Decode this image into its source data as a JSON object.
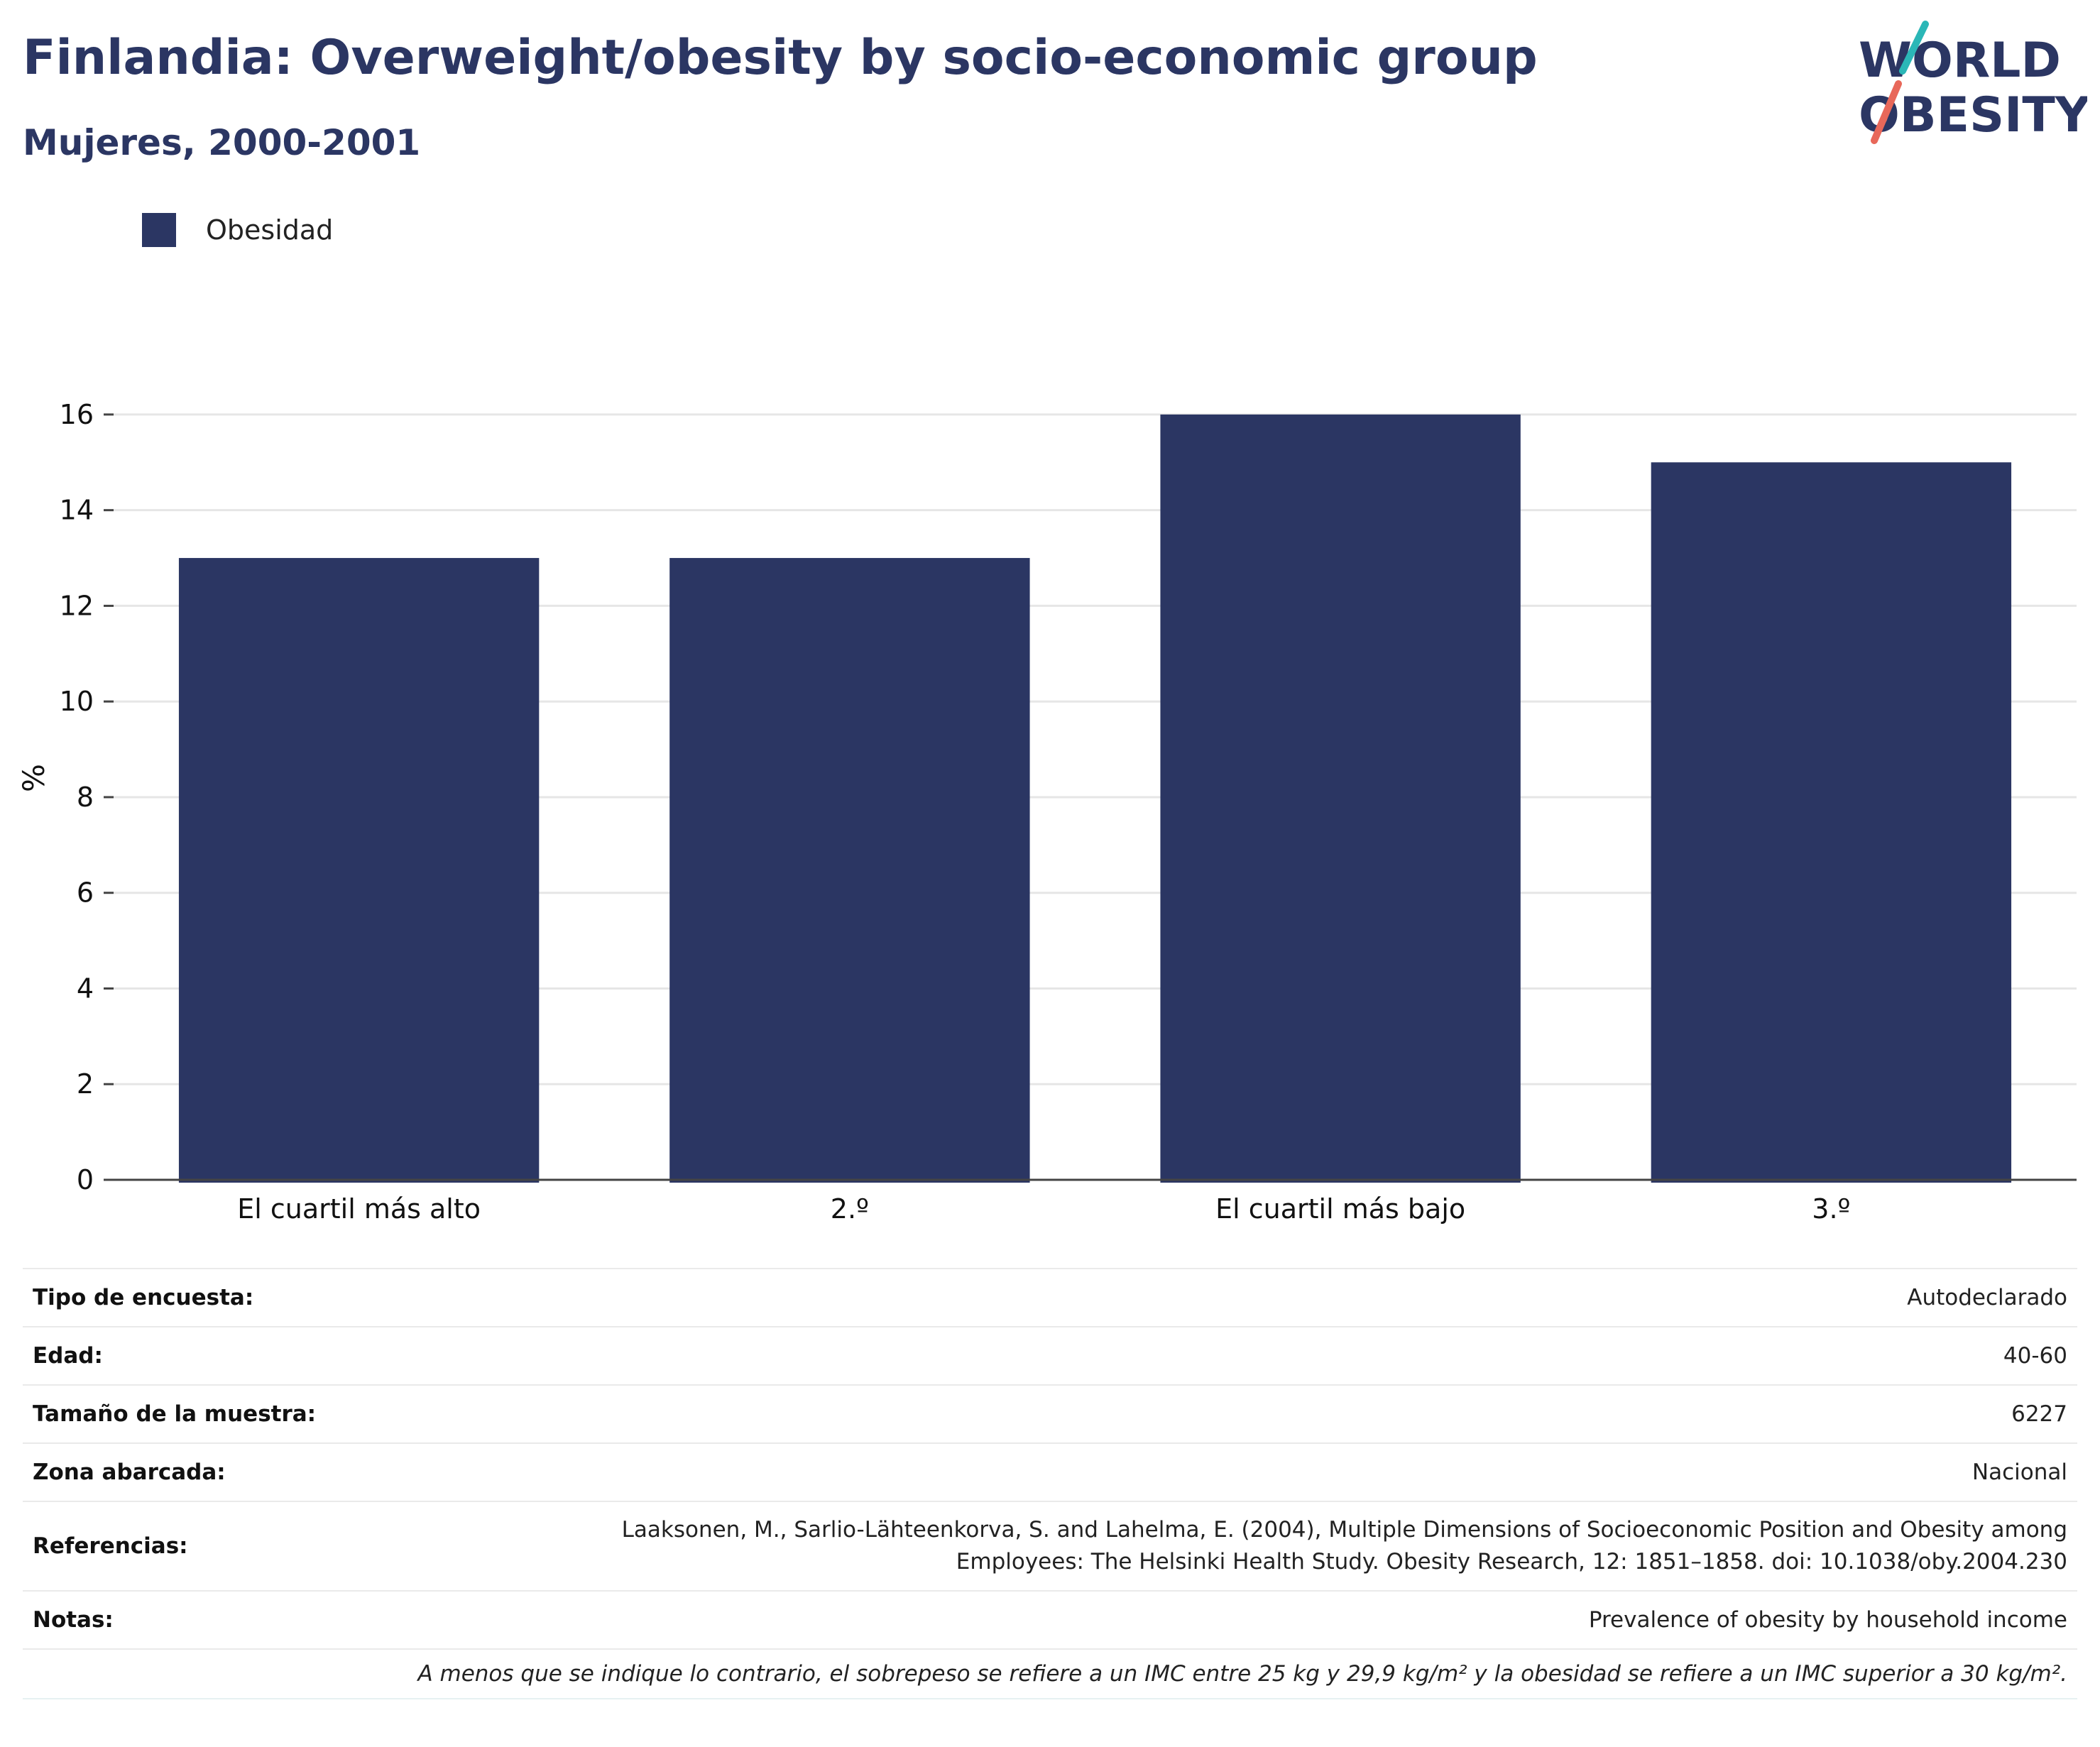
{
  "header": {
    "title": "Finlandia: Overweight/obesity by socio-economic group",
    "subtitle": "Mujeres, 2000-2001"
  },
  "logo": {
    "line1": "WORLD",
    "line2": "OBESITY"
  },
  "colors": {
    "bar": "#2b3663",
    "title": "#2b3663",
    "logo_accent_teal": "#2bb7b7",
    "logo_accent_red": "#e8685a"
  },
  "chart_data": {
    "type": "bar",
    "categories": [
      "El cuartil más alto",
      "2.º",
      "El cuartil más bajo",
      "3.º"
    ],
    "series": [
      {
        "name": "Obesidad",
        "values": [
          13,
          13,
          16,
          15
        ]
      }
    ],
    "ylabel": "%",
    "ylim": [
      0,
      16.8
    ],
    "yticks": [
      0,
      2,
      4,
      6,
      8,
      10,
      12,
      14,
      16
    ],
    "grid": true,
    "legend_position": "top-left"
  },
  "info": {
    "survey_type": {
      "label": "Tipo de encuesta:",
      "value": "Autodeclarado"
    },
    "age": {
      "label": "Edad:",
      "value": "40-60"
    },
    "sample_size": {
      "label": "Tamaño de la muestra:",
      "value": "6227"
    },
    "area": {
      "label": "Zona abarcada:",
      "value": "Nacional"
    },
    "references": {
      "label": "Referencias:",
      "line1": "Laaksonen, M., Sarlio-Lähteenkorva, S. and Lahelma, E. (2004), Multiple Dimensions of Socioeconomic Position and Obesity among",
      "line2": "Employees: The Helsinki Health Study. Obesity Research, 12: 1851–1858. doi: 10.1038/oby.2004.230"
    },
    "notes": {
      "label": "Notas:",
      "value": "Prevalence of obesity by household income"
    },
    "footnote": "A menos que se indique lo contrario, el sobrepeso se refiere a un IMC entre 25 kg y 29,9 kg/m² y la obesidad se refiere a un IMC superior a 30 kg/m²."
  }
}
